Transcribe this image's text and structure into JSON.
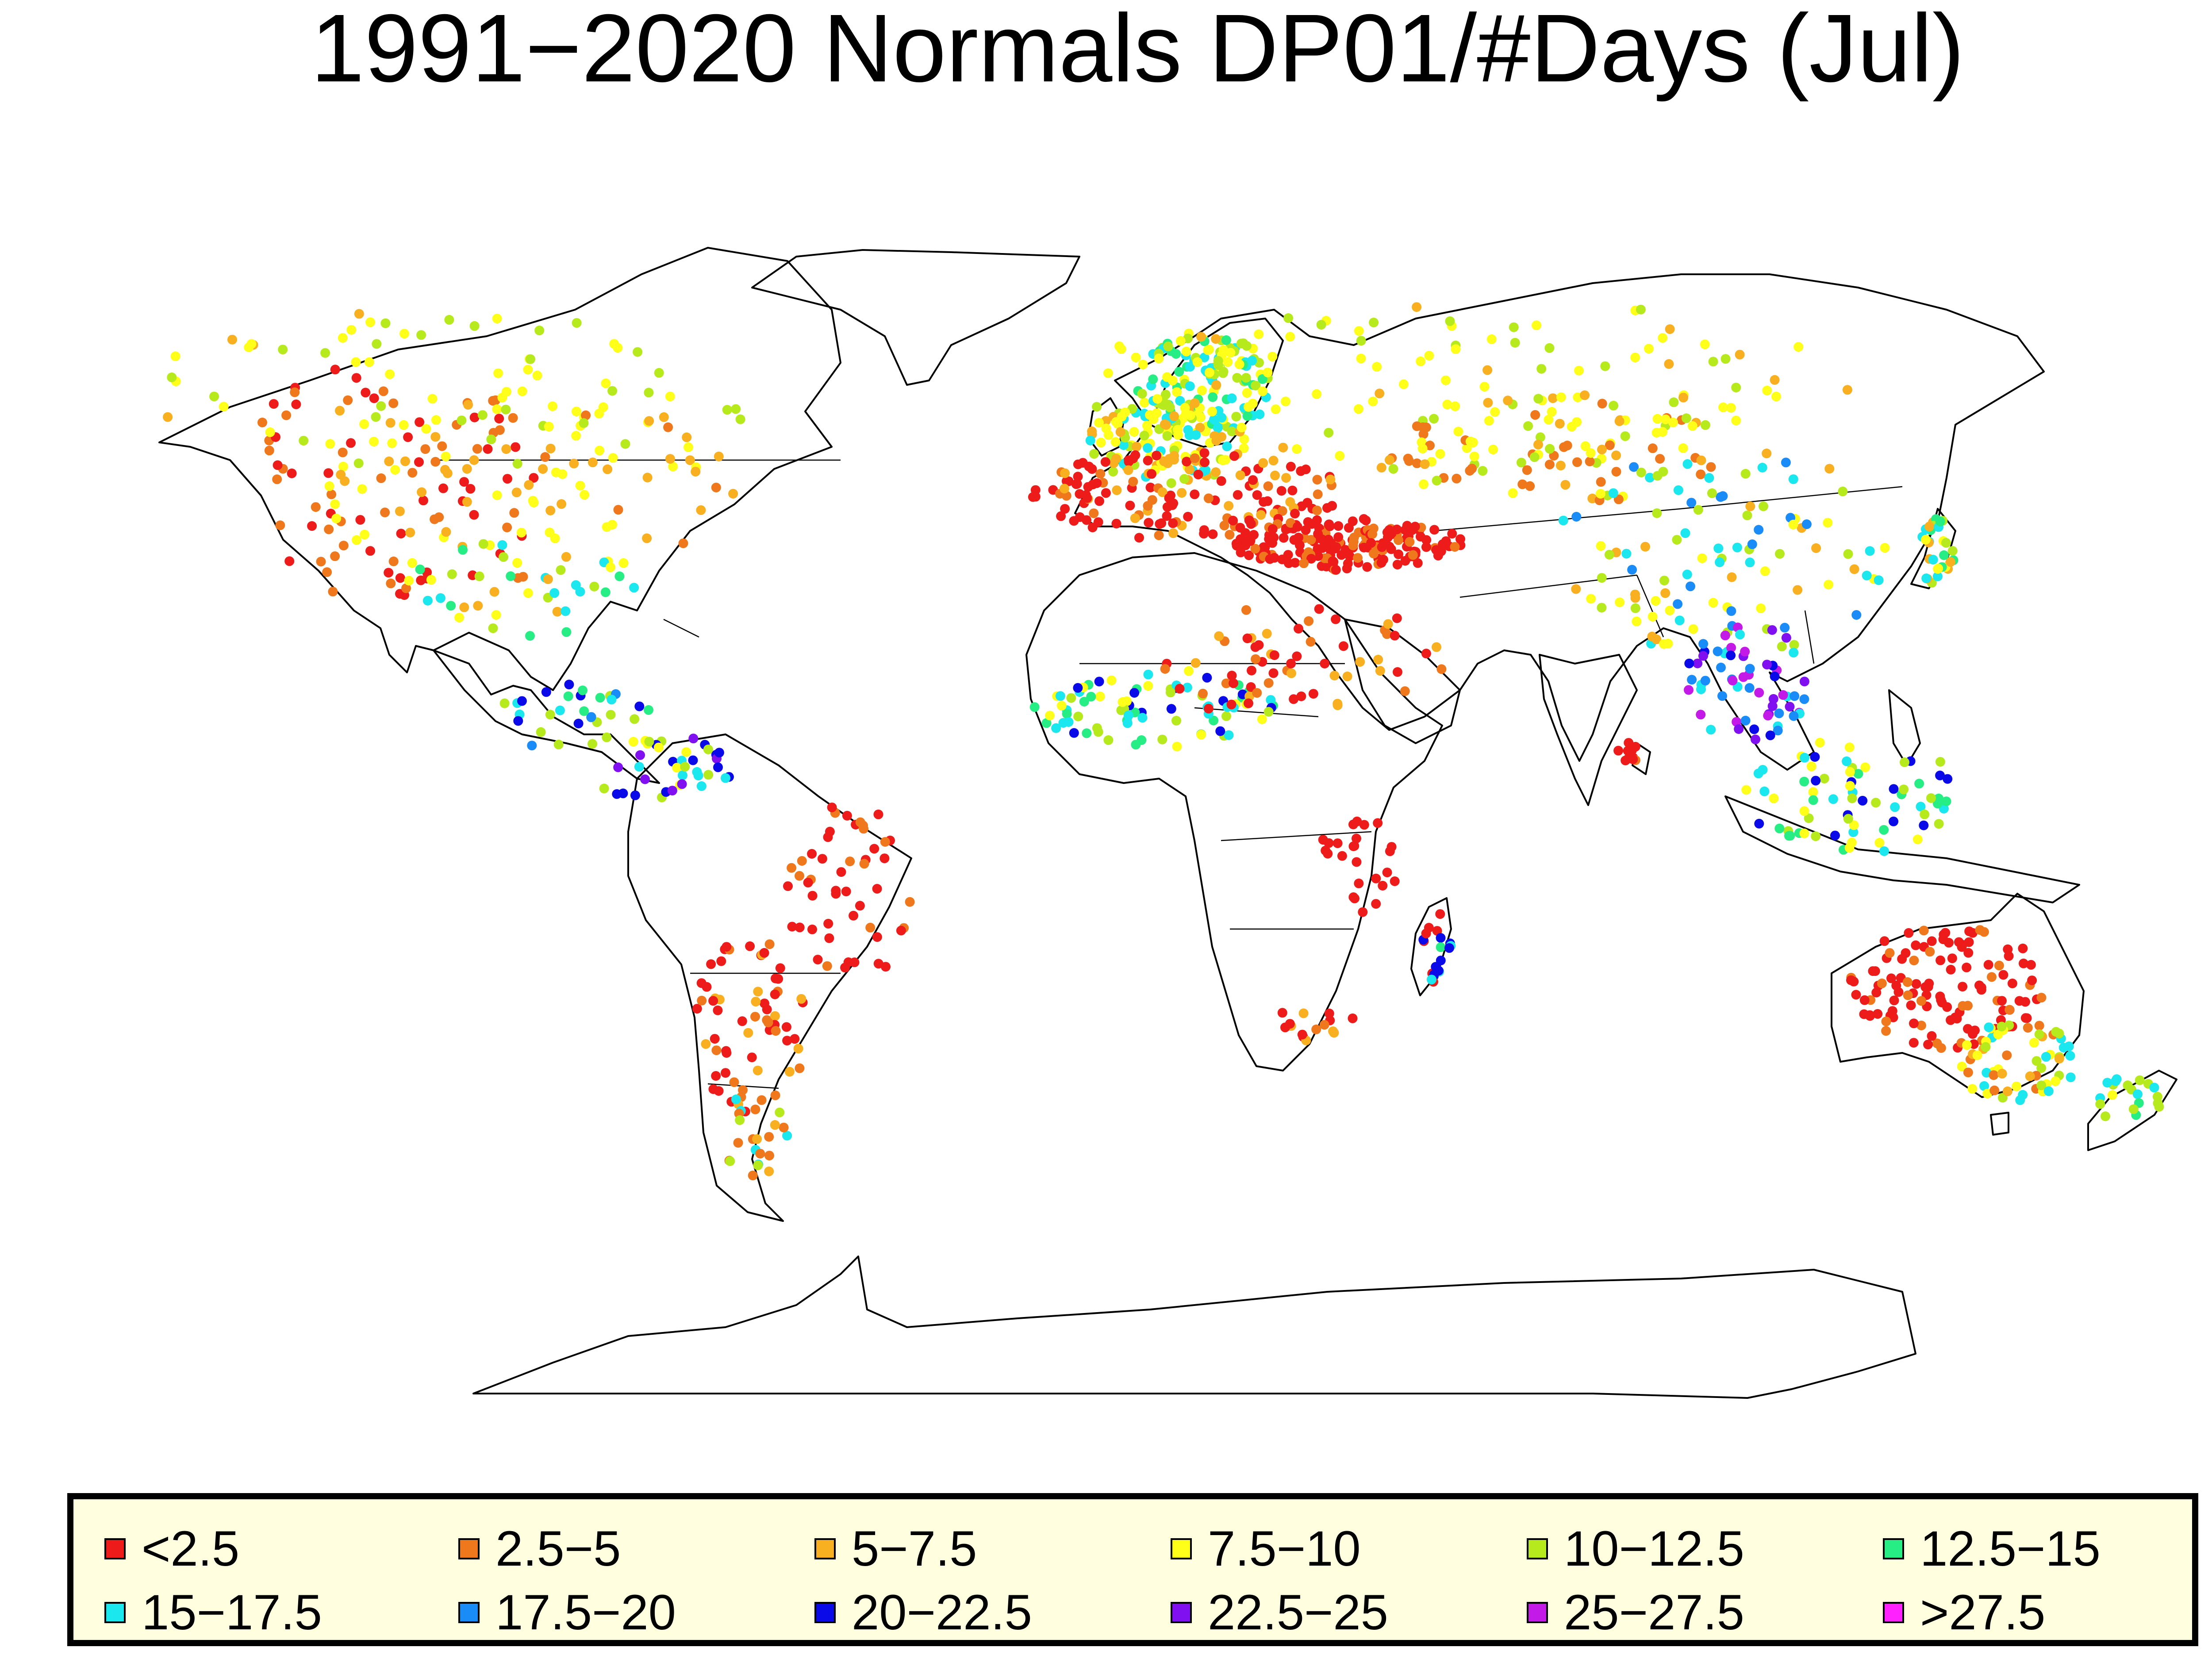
{
  "title": "1991−2020 Normals DP01/#Days (Jul)",
  "map": {
    "projection": "Robinson (world)",
    "layers": [
      "coastlines",
      "country-borders",
      "station-points"
    ],
    "no_station_color": "#ffffff",
    "outline_color": "#000000"
  },
  "legend": {
    "background": "#ffffe0",
    "columns": 6,
    "items": [
      {
        "label": "<2.5",
        "color": "#ee1b1b"
      },
      {
        "label": "2.5−5",
        "color": "#f0781c"
      },
      {
        "label": "5−7.5",
        "color": "#f8b020"
      },
      {
        "label": "7.5−10",
        "color": "#ffff1a"
      },
      {
        "label": "10−12.5",
        "color": "#b6ea1c"
      },
      {
        "label": "12.5−15",
        "color": "#27ee84"
      },
      {
        "label": "15−17.5",
        "color": "#1ae8ee"
      },
      {
        "label": "17.5−20",
        "color": "#1a8cf8"
      },
      {
        "label": "20−22.5",
        "color": "#0a0ae8"
      },
      {
        "label": "22.5−25",
        "color": "#8010f0"
      },
      {
        "label": "25−27.5",
        "color": "#c41ae8"
      },
      {
        "label": ">27.5",
        "color": "#ff22ff"
      }
    ]
  }
}
